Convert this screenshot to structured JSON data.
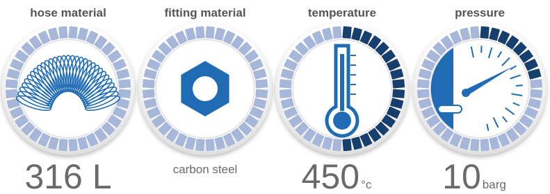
{
  "items": [
    {
      "label": "hose material",
      "value": "316 L"
    },
    {
      "label": "fitting material",
      "value": "carbon steel"
    },
    {
      "label": "temperature",
      "value": "450",
      "unit": "°c"
    },
    {
      "label": "pressure",
      "value": "10",
      "unit": "barg"
    }
  ]
}
